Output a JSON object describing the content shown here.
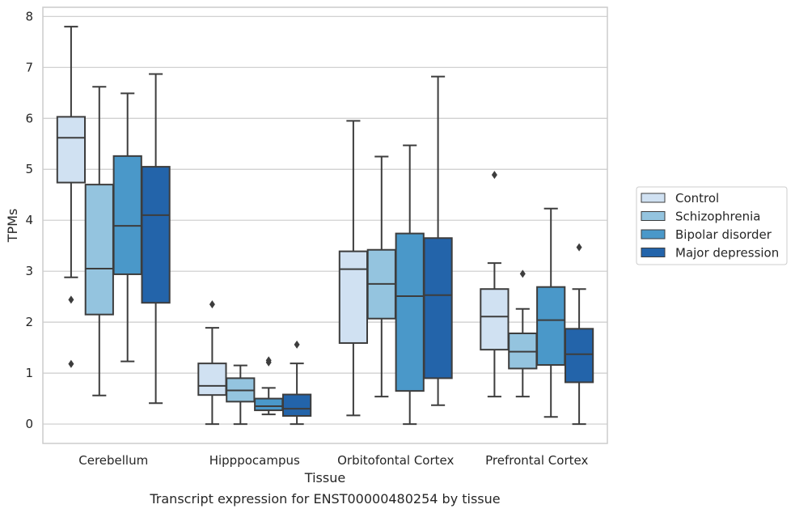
{
  "chart_data": {
    "type": "boxplot",
    "xlabel": "Tissue",
    "ylabel": "TPMs",
    "caption": "Transcript expression for ENST00000480254 by tissue",
    "ylim": [
      -0.38,
      8.18
    ],
    "yticks": [
      0,
      1,
      2,
      3,
      4,
      5,
      6,
      7,
      8
    ],
    "grid": "horizontal",
    "legend_position": "right",
    "categories": [
      "Cerebellum",
      "Hipppocampus",
      "Orbitofontal Cortex",
      "Prefrontal Cortex"
    ],
    "series": [
      {
        "name": "Control",
        "color": "#d0e1f2",
        "boxes": [
          {
            "whislo": 2.88,
            "q1": 4.74,
            "med": 5.62,
            "q3": 6.03,
            "whishi": 7.8,
            "fliers": [
              2.44,
              1.18
            ]
          },
          {
            "whislo": 0.0,
            "q1": 0.57,
            "med": 0.75,
            "q3": 1.19,
            "whishi": 1.89,
            "fliers": [
              2.35
            ]
          },
          {
            "whislo": 0.17,
            "q1": 1.59,
            "med": 3.04,
            "q3": 3.39,
            "whishi": 5.95,
            "fliers": []
          },
          {
            "whislo": 0.54,
            "q1": 1.46,
            "med": 2.11,
            "q3": 2.65,
            "whishi": 3.16,
            "fliers": [
              4.89
            ]
          }
        ]
      },
      {
        "name": "Schizophrenia",
        "color": "#94c4df",
        "boxes": [
          {
            "whislo": 0.56,
            "q1": 2.15,
            "med": 3.05,
            "q3": 4.7,
            "whishi": 6.62,
            "fliers": []
          },
          {
            "whislo": 0.0,
            "q1": 0.44,
            "med": 0.66,
            "q3": 0.9,
            "whishi": 1.15,
            "fliers": []
          },
          {
            "whislo": 0.54,
            "q1": 2.07,
            "med": 2.75,
            "q3": 3.42,
            "whishi": 5.25,
            "fliers": []
          },
          {
            "whislo": 0.54,
            "q1": 1.09,
            "med": 1.42,
            "q3": 1.78,
            "whishi": 2.26,
            "fliers": [
              2.95
            ]
          }
        ]
      },
      {
        "name": "Bipolar disorder",
        "color": "#4a98c9",
        "boxes": [
          {
            "whislo": 1.23,
            "q1": 2.94,
            "med": 3.89,
            "q3": 5.26,
            "whishi": 6.49,
            "fliers": []
          },
          {
            "whislo": 0.19,
            "q1": 0.27,
            "med": 0.35,
            "q3": 0.5,
            "whishi": 0.71,
            "fliers": [
              1.21,
              1.25
            ]
          },
          {
            "whislo": 0.0,
            "q1": 0.65,
            "med": 2.51,
            "q3": 3.74,
            "whishi": 5.47,
            "fliers": []
          },
          {
            "whislo": 0.14,
            "q1": 1.16,
            "med": 2.04,
            "q3": 2.69,
            "whishi": 4.23,
            "fliers": []
          }
        ]
      },
      {
        "name": "Major depression",
        "color": "#2364aa",
        "boxes": [
          {
            "whislo": 0.41,
            "q1": 2.38,
            "med": 4.1,
            "q3": 5.05,
            "whishi": 6.87,
            "fliers": []
          },
          {
            "whislo": 0.0,
            "q1": 0.16,
            "med": 0.3,
            "q3": 0.58,
            "whishi": 1.19,
            "fliers": [
              1.56
            ]
          },
          {
            "whislo": 0.37,
            "q1": 0.9,
            "med": 2.53,
            "q3": 3.65,
            "whishi": 6.82,
            "fliers": []
          },
          {
            "whislo": 0.0,
            "q1": 0.82,
            "med": 1.37,
            "q3": 1.87,
            "whishi": 2.65,
            "fliers": [
              3.47
            ]
          }
        ]
      }
    ]
  }
}
